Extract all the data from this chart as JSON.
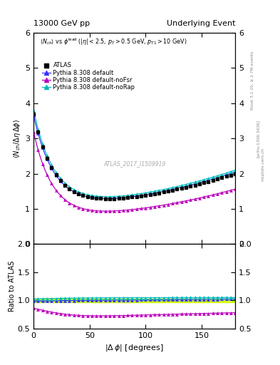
{
  "title_left": "13000 GeV pp",
  "title_right": "Underlying Event",
  "subtitle": "$\\langle N_{ch}\\rangle$ vs $\\phi^{\\rm lead}$ ($|\\eta| < 2.5$, $p_T > 0.5$ GeV, $p_{T1} > 10$ GeV)",
  "rivet_label": "Rivet 3.1.10, ≥ 2.7M events",
  "arxiv_label": "[arXiv:1306.3436]",
  "mcplots_label": "mcplots.cern.ch",
  "watermark": "ATLAS_2017_I1509919",
  "ylabel_main": "$\\langle N_{ch} / \\Delta\\eta\\, \\Delta\\phi \\rangle$",
  "ylabel_ratio": "Ratio to ATLAS",
  "xlabel": "$|\\Delta\\,\\phi|$ [degrees]",
  "ylim_main": [
    0,
    6
  ],
  "ylim_ratio": [
    0.5,
    2.0
  ],
  "yticks_main": [
    0,
    1,
    2,
    3,
    4,
    5,
    6
  ],
  "yticks_ratio": [
    0.5,
    1.0,
    1.5,
    2.0
  ],
  "xlim": [
    0,
    180
  ],
  "xticks": [
    0,
    50,
    100,
    150
  ],
  "legend_entries": [
    "ATLAS",
    "Pythia 8.308 default",
    "Pythia 8.308 default-noFsr",
    "Pythia 8.308 default-noRap"
  ],
  "colors": {
    "atlas": "#000000",
    "default": "#3333ff",
    "noFsr": "#bb00bb",
    "noRap": "#00bbbb"
  },
  "background_color": "#ffffff"
}
